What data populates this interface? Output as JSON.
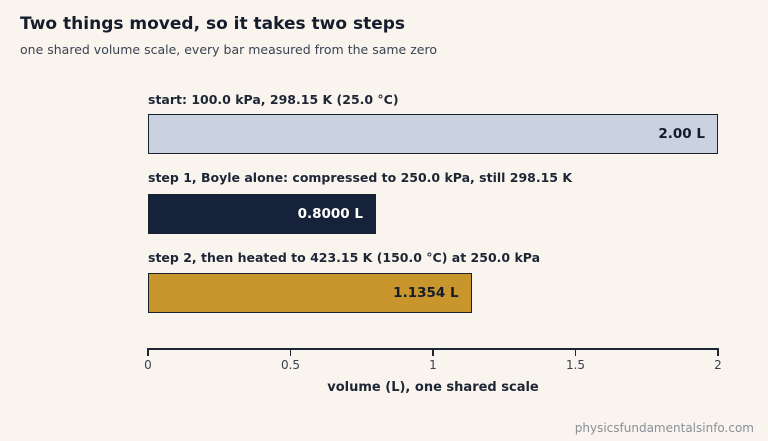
{
  "chart_data": {
    "type": "bar",
    "orientation": "horizontal",
    "title": "Two things moved, so it takes two steps",
    "subtitle": "one shared volume scale, every bar measured from the same zero",
    "xlabel": "volume (L), one shared scale",
    "ylabel": "",
    "xlim": [
      0,
      2
    ],
    "ticks": [
      0,
      0.5,
      1,
      1.5,
      2
    ],
    "tick_labels": [
      "0",
      "0.5",
      "1",
      "1.5",
      "2"
    ],
    "grid": false,
    "bars": [
      {
        "label": "start: 100.0 kPa, 298.15 K (25.0 °C)",
        "value": 2.0,
        "value_label": "2.00 L",
        "color": "#c9d2de",
        "text_color": "#151c2c"
      },
      {
        "label": "step 1, Boyle alone: compressed to 250.0 kPa, still 298.15 K",
        "value": 0.8,
        "value_label": "0.8000 L",
        "color": "#16213a",
        "text_color": "#ffffff"
      },
      {
        "label": "step 2, then heated to 423.15 K (150.0 °C) at 250.0 kPa",
        "value": 1.1354,
        "value_label": "1.1354 L",
        "color": "#c8962c",
        "text_color": "#151c2c"
      }
    ]
  },
  "footer": "physicsfundamentalsinfo.com"
}
